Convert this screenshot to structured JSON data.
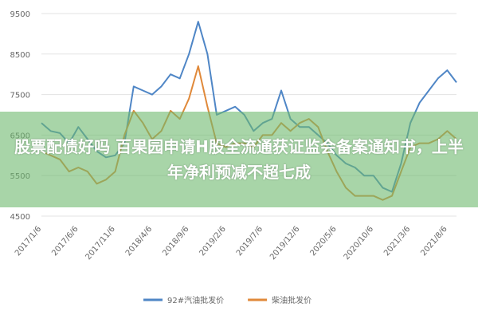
{
  "chart_data": {
    "type": "line",
    "annotation": "股票配债好吗 百果园申请H股全流通获证监会备案通知书，上半年净利预减不超七成",
    "categories": [
      "2017/1/6",
      null,
      null,
      null,
      "2017/6/6",
      null,
      null,
      null,
      "2017/11/6",
      null,
      null,
      null,
      "2018/4/6",
      null,
      null,
      null,
      "2018/9/6",
      null,
      null,
      null,
      "2019/2/6",
      null,
      null,
      null,
      "2019/7/6",
      null,
      null,
      null,
      "2019/12/6",
      null,
      null,
      null,
      "2020/5/6",
      null,
      null,
      null,
      "2020/10/6",
      null,
      null,
      null,
      "2021/3/6",
      null,
      null,
      null,
      "2021/8/6",
      null
    ],
    "series": [
      {
        "name": "92#汽油批发价",
        "color": "#4f86c6",
        "values": [
          6800,
          6600,
          6550,
          6300,
          6700,
          6400,
          6100,
          5950,
          6000,
          6300,
          7700,
          7600,
          7500,
          7700,
          8000,
          7900,
          8500,
          9300,
          8500,
          7000,
          7100,
          7200,
          7000,
          6600,
          6800,
          6900,
          7600,
          6900,
          6700,
          6700,
          6500,
          6300,
          6000,
          5800,
          5700,
          5500,
          5500,
          5200,
          5100,
          5800,
          6800,
          7300,
          7600,
          7900,
          8100,
          7800
        ]
      },
      {
        "name": "柴油批发价",
        "color": "#e0893a",
        "values": [
          6100,
          6000,
          5900,
          5600,
          5700,
          5600,
          5300,
          5400,
          5600,
          6500,
          7100,
          6800,
          6400,
          6600,
          7100,
          6900,
          7400,
          8200,
          7200,
          6300,
          6200,
          6300,
          6300,
          6200,
          6500,
          6500,
          6800,
          6600,
          6800,
          6900,
          6700,
          6100,
          5600,
          5200,
          5000,
          5000,
          5000,
          4900,
          5000,
          5600,
          6200,
          6300,
          6300,
          6400,
          6600,
          6400
        ]
      }
    ],
    "ylim": [
      4500,
      9500
    ],
    "yticks": [
      4500,
      5500,
      6500,
      7500,
      8500,
      9500
    ],
    "grid": true,
    "legend": "bottom"
  }
}
